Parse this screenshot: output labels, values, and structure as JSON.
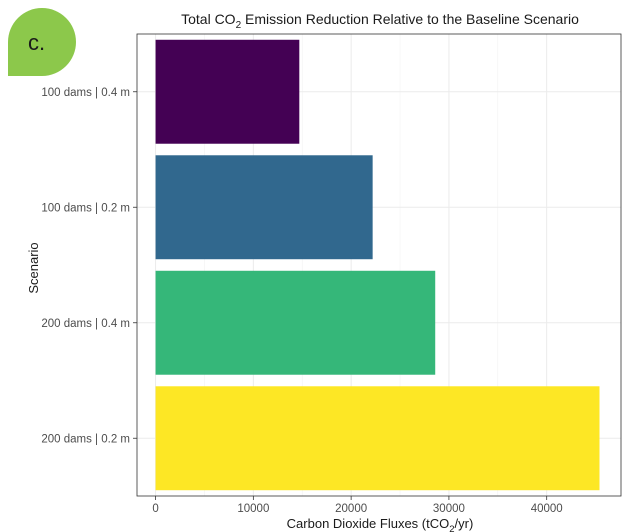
{
  "panel_label": "c.",
  "chart_data": {
    "type": "bar",
    "orientation": "horizontal",
    "title": {
      "pre": "Total CO",
      "sub": "2",
      "post": " Emission Reduction Relative to the Baseline Scenario"
    },
    "xlabel": {
      "pre": "Carbon Dioxide Fluxes (tCO",
      "sub": "2",
      "post": "/yr)"
    },
    "ylabel": "Scenario",
    "categories": [
      "100 dams | 0.4 m",
      "100 dams | 0.2 m",
      "200 dams | 0.4 m",
      "200 dams | 0.2 m"
    ],
    "values": [
      14700,
      22200,
      28600,
      45400
    ],
    "colors": [
      "#440154",
      "#31688e",
      "#35b779",
      "#fde725"
    ],
    "xlim": [
      -1900,
      47600
    ],
    "xticks": [
      0,
      10000,
      20000,
      30000,
      40000
    ],
    "grid": true,
    "legend": "none"
  }
}
